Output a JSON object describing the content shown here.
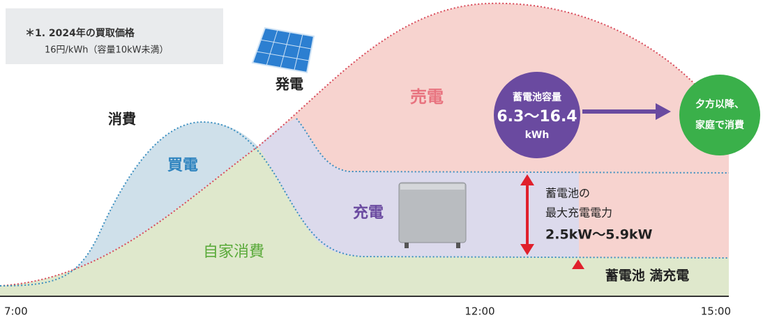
{
  "note": {
    "title": "＊1. 2024年の買取価格",
    "detail": "16円/kWh（容量10kW未満）"
  },
  "labels": {
    "generation": "発電",
    "consumption": "消費",
    "selling": "売電",
    "buying": "買電",
    "charging": "充電",
    "self_consumption": "自家消費"
  },
  "battery_capacity": {
    "title": "蓄電池容量",
    "value": "6.3〜16.4",
    "unit": "kWh"
  },
  "evening": {
    "line1": "夕方以降、",
    "line2": "家庭で消費"
  },
  "charge_power": {
    "line1": "蓄電池の",
    "line2": "最大充電電力",
    "value": "2.5kW〜5.9kW"
  },
  "full_charge": "蓄電池 満充電",
  "times": [
    "7:00",
    "12:00",
    "15:00"
  ]
}
